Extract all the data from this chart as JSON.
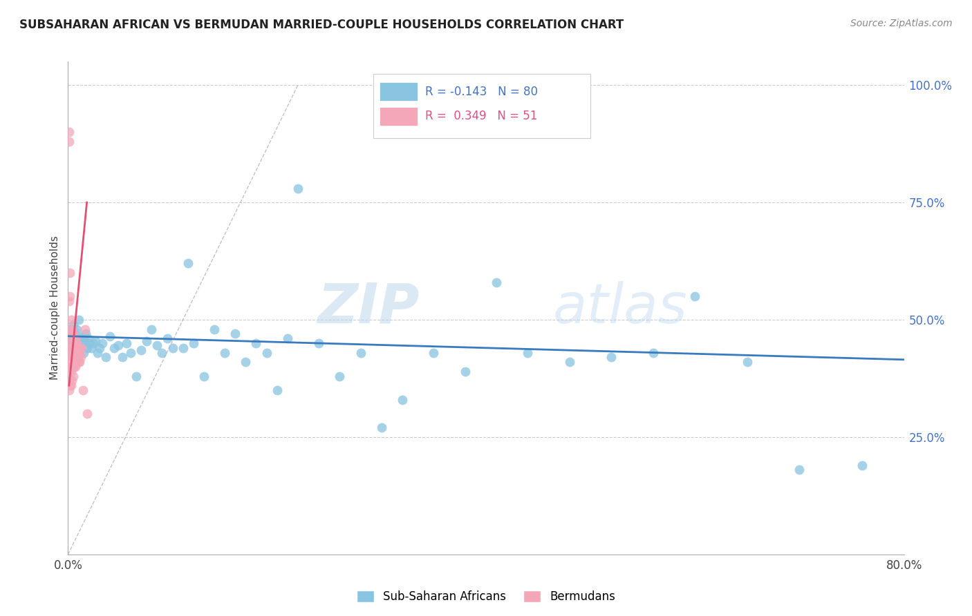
{
  "title": "SUBSAHARAN AFRICAN VS BERMUDAN MARRIED-COUPLE HOUSEHOLDS CORRELATION CHART",
  "source": "Source: ZipAtlas.com",
  "ylabel": "Married-couple Households",
  "x_min": 0.0,
  "x_max": 0.8,
  "y_min": 0.0,
  "y_max": 1.05,
  "blue_R": -0.143,
  "blue_N": 80,
  "pink_R": 0.349,
  "pink_N": 51,
  "blue_color": "#89c4e1",
  "pink_color": "#f4a7b9",
  "blue_line_color": "#3a7abf",
  "pink_line_color": "#e05070",
  "legend_blue_label": "Sub-Saharan Africans",
  "legend_pink_label": "Bermudans",
  "watermark_zip": "ZIP",
  "watermark_atlas": "atlas",
  "blue_scatter_x": [
    0.002,
    0.003,
    0.003,
    0.004,
    0.004,
    0.005,
    0.005,
    0.005,
    0.006,
    0.006,
    0.006,
    0.007,
    0.007,
    0.007,
    0.008,
    0.008,
    0.009,
    0.009,
    0.01,
    0.01,
    0.011,
    0.012,
    0.013,
    0.014,
    0.015,
    0.016,
    0.017,
    0.018,
    0.019,
    0.02,
    0.022,
    0.024,
    0.026,
    0.028,
    0.03,
    0.033,
    0.036,
    0.04,
    0.044,
    0.048,
    0.052,
    0.056,
    0.06,
    0.065,
    0.07,
    0.075,
    0.08,
    0.085,
    0.09,
    0.095,
    0.1,
    0.11,
    0.115,
    0.12,
    0.13,
    0.14,
    0.15,
    0.16,
    0.17,
    0.18,
    0.19,
    0.2,
    0.21,
    0.22,
    0.24,
    0.26,
    0.28,
    0.3,
    0.32,
    0.35,
    0.38,
    0.41,
    0.44,
    0.48,
    0.52,
    0.56,
    0.6,
    0.65,
    0.7,
    0.76
  ],
  "blue_scatter_y": [
    0.455,
    0.465,
    0.48,
    0.445,
    0.46,
    0.44,
    0.47,
    0.49,
    0.45,
    0.46,
    0.475,
    0.43,
    0.445,
    0.46,
    0.435,
    0.48,
    0.42,
    0.45,
    0.445,
    0.5,
    0.46,
    0.44,
    0.465,
    0.455,
    0.43,
    0.455,
    0.47,
    0.44,
    0.46,
    0.45,
    0.44,
    0.45,
    0.455,
    0.43,
    0.44,
    0.45,
    0.42,
    0.465,
    0.44,
    0.445,
    0.42,
    0.45,
    0.43,
    0.38,
    0.435,
    0.455,
    0.48,
    0.445,
    0.43,
    0.46,
    0.44,
    0.44,
    0.62,
    0.45,
    0.38,
    0.48,
    0.43,
    0.47,
    0.41,
    0.45,
    0.43,
    0.35,
    0.46,
    0.78,
    0.45,
    0.38,
    0.43,
    0.27,
    0.33,
    0.43,
    0.39,
    0.58,
    0.43,
    0.41,
    0.42,
    0.43,
    0.55,
    0.41,
    0.18,
    0.19
  ],
  "pink_scatter_x": [
    0.001,
    0.001,
    0.001,
    0.001,
    0.002,
    0.002,
    0.002,
    0.002,
    0.002,
    0.002,
    0.003,
    0.003,
    0.003,
    0.003,
    0.003,
    0.003,
    0.003,
    0.004,
    0.004,
    0.004,
    0.004,
    0.004,
    0.004,
    0.005,
    0.005,
    0.005,
    0.005,
    0.005,
    0.005,
    0.006,
    0.006,
    0.006,
    0.006,
    0.007,
    0.007,
    0.007,
    0.007,
    0.008,
    0.008,
    0.008,
    0.009,
    0.009,
    0.01,
    0.01,
    0.011,
    0.011,
    0.012,
    0.013,
    0.014,
    0.016,
    0.018
  ],
  "pink_scatter_y": [
    0.88,
    0.9,
    0.54,
    0.35,
    0.6,
    0.55,
    0.48,
    0.44,
    0.4,
    0.36,
    0.5,
    0.47,
    0.45,
    0.43,
    0.41,
    0.39,
    0.36,
    0.48,
    0.46,
    0.44,
    0.42,
    0.4,
    0.37,
    0.47,
    0.45,
    0.43,
    0.42,
    0.4,
    0.38,
    0.46,
    0.45,
    0.42,
    0.4,
    0.46,
    0.44,
    0.42,
    0.4,
    0.45,
    0.43,
    0.41,
    0.44,
    0.42,
    0.44,
    0.41,
    0.43,
    0.41,
    0.42,
    0.44,
    0.35,
    0.48,
    0.3
  ],
  "blue_trend_x0": 0.0,
  "blue_trend_x1": 0.8,
  "blue_trend_y0": 0.465,
  "blue_trend_y1": 0.415,
  "pink_trend_x0": 0.001,
  "pink_trend_x1": 0.018,
  "pink_trend_y0": 0.36,
  "pink_trend_y1": 0.75,
  "ref_line_x": [
    0.0,
    0.22
  ],
  "ref_line_y": [
    0.0,
    1.0
  ]
}
